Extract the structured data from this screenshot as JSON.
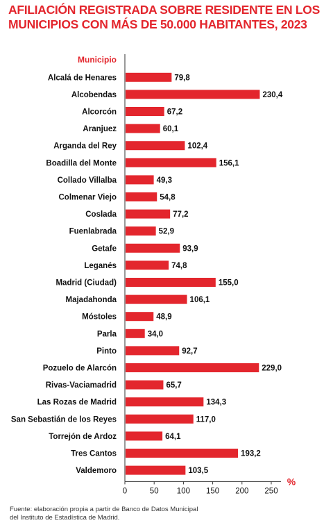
{
  "title_lines": [
    "AFILIACIÓN REGISTRADA SOBRE RESIDENTE EN LOS",
    "MUNICIPIOS CON MÁS DE  50.000 HABITANTES, 2023"
  ],
  "source_lines": [
    "Fuente: elaboración propia a partir de Banco de Datos Municipal",
    "del Instituto de Estadística de Madrid."
  ],
  "colors": {
    "bar": "#e3262d",
    "title": "#e3262d",
    "axis": "#333333",
    "text": "#111111"
  },
  "chart_data": {
    "type": "bar",
    "orientation": "horizontal",
    "category_header": "Municipio",
    "unit_label": "%",
    "categories": [
      "Alcalá de Henares",
      "Alcobendas",
      "Alcorcón",
      "Aranjuez",
      "Arganda del Rey",
      "Boadilla del Monte",
      "Collado Villalba",
      "Colmenar Viejo",
      "Coslada",
      "Fuenlabrada",
      "Getafe",
      "Leganés",
      "Madrid (Ciudad)",
      "Majadahonda",
      "Móstoles",
      "Parla",
      "Pinto",
      "Pozuelo de Alarcón",
      "Rivas-Vaciamadrid",
      "Las Rozas de Madrid",
      "San Sebastián de los Reyes",
      "Torrejón de Ardoz",
      "Tres Cantos",
      "Valdemoro"
    ],
    "values": [
      79.8,
      230.4,
      67.2,
      60.1,
      102.4,
      156.1,
      49.3,
      54.8,
      77.2,
      52.9,
      93.9,
      74.8,
      155.0,
      106.1,
      48.9,
      34.0,
      92.7,
      229.0,
      65.7,
      134.3,
      117.0,
      64.1,
      193.2,
      103.5
    ],
    "value_labels": [
      "79,8",
      "230,4",
      "67,2",
      "60,1",
      "102,4",
      "156,1",
      "49,3",
      "54,8",
      "77,2",
      "52,9",
      "93,9",
      "74,8",
      "155,0",
      "106,1",
      "48,9",
      "34,0",
      "92,7",
      "229,0",
      "65,7",
      "134,3",
      "117,0",
      "64,1",
      "193,2",
      "103,5"
    ],
    "xlim": [
      0,
      250
    ],
    "x_ticks": [
      0,
      50,
      100,
      150,
      200,
      250
    ],
    "x_tick_labels": [
      "0",
      "50",
      "100",
      "150",
      "200",
      "250"
    ],
    "grid": false,
    "legend": "none"
  }
}
